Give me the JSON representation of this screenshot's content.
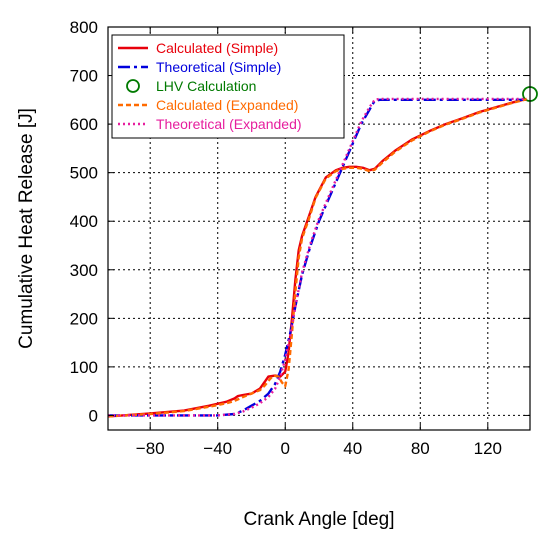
{
  "chart_data": {
    "type": "line",
    "xlabel": "Crank Angle [deg]",
    "ylabel": "Cumulative Heat Release [J]",
    "xlim": [
      -105,
      145
    ],
    "ylim": [
      -30,
      800
    ],
    "xticks": [
      -80,
      -40,
      0,
      40,
      80,
      120
    ],
    "yticks": [
      0,
      100,
      200,
      300,
      400,
      500,
      600,
      700,
      800
    ],
    "grid": true,
    "legend_position": "top-left",
    "series": [
      {
        "name": "Calculated (Simple)",
        "color": "#e8000b",
        "dash": "solid",
        "x": [
          -105,
          -80,
          -60,
          -45,
          -35,
          -30,
          -28,
          -25,
          -20,
          -15,
          -12,
          -10,
          -6,
          -3,
          0,
          2,
          4,
          6,
          8,
          10,
          14,
          18,
          24,
          30,
          34,
          38,
          42,
          46,
          50,
          53,
          58,
          65,
          75,
          85,
          95,
          105,
          115,
          125,
          135,
          143
        ],
        "y": [
          -2,
          4,
          10,
          20,
          28,
          35,
          40,
          42,
          45,
          55,
          70,
          80,
          82,
          80,
          90,
          130,
          200,
          280,
          340,
          370,
          410,
          450,
          490,
          505,
          510,
          512,
          512,
          510,
          505,
          508,
          525,
          545,
          568,
          585,
          600,
          612,
          625,
          635,
          645,
          652
        ]
      },
      {
        "name": "Theoretical (Simple)",
        "color": "#0000dd",
        "dash": "dashdot",
        "x": [
          -105,
          -60,
          -40,
          -30,
          -25,
          -20,
          -15,
          -10,
          -6,
          -3,
          0,
          3,
          6,
          10,
          15,
          20,
          25,
          30,
          35,
          40,
          45,
          50,
          53,
          56,
          60,
          70,
          80,
          100,
          120,
          143
        ],
        "y": [
          0,
          0,
          0,
          3,
          10,
          20,
          30,
          45,
          65,
          90,
          125,
          170,
          225,
          290,
          350,
          400,
          440,
          480,
          520,
          560,
          600,
          630,
          648,
          650,
          650,
          650,
          650,
          650,
          650,
          650
        ]
      },
      {
        "name": "LHV Calculation",
        "color": "#007a00",
        "marker": "circle-open",
        "x": [
          145
        ],
        "y": [
          662
        ]
      },
      {
        "name": "Calculated (Expanded)",
        "color": "#ff6a00",
        "dash": "dashed",
        "x": [
          -105,
          -80,
          -60,
          -45,
          -35,
          -30,
          -25,
          -20,
          -15,
          -12,
          -9,
          -7,
          -4,
          -2,
          0,
          2,
          4,
          6,
          8,
          10,
          14,
          18,
          24,
          30,
          34,
          38,
          42,
          46,
          50,
          53,
          58,
          65,
          75,
          85,
          95,
          105,
          115,
          125,
          135,
          143
        ],
        "y": [
          -2,
          3,
          9,
          18,
          25,
          30,
          38,
          45,
          52,
          62,
          75,
          82,
          80,
          68,
          60,
          95,
          170,
          255,
          325,
          365,
          405,
          448,
          488,
          503,
          508,
          510,
          510,
          508,
          503,
          506,
          522,
          543,
          566,
          584,
          599,
          611,
          624,
          634,
          644,
          651
        ]
      },
      {
        "name": "Theoretical (Expanded)",
        "color": "#e61e9e",
        "dash": "dotted",
        "x": [
          -105,
          -60,
          -40,
          -30,
          -25,
          -20,
          -15,
          -10,
          -6,
          -3,
          0,
          3,
          6,
          10,
          15,
          20,
          25,
          30,
          35,
          40,
          45,
          50,
          53,
          56,
          60,
          70,
          80,
          100,
          120,
          143
        ],
        "y": [
          0,
          0,
          0,
          3,
          8,
          16,
          25,
          38,
          55,
          80,
          115,
          165,
          225,
          295,
          355,
          405,
          445,
          485,
          525,
          565,
          605,
          635,
          650,
          652,
          652,
          652,
          652,
          652,
          652,
          652
        ]
      }
    ]
  }
}
